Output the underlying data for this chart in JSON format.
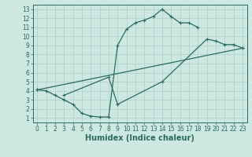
{
  "bg_color": "#cde8e0",
  "line_color": "#2a6b5e",
  "grid_color": "#aacfc7",
  "curve1_x": [
    0,
    1,
    2,
    3,
    4,
    5,
    6,
    7,
    8,
    9,
    10,
    11,
    12,
    13,
    14,
    15,
    16,
    17,
    18
  ],
  "curve1_y": [
    4.1,
    4.0,
    3.5,
    3.0,
    2.5,
    1.5,
    1.2,
    1.1,
    1.1,
    9.0,
    10.8,
    11.5,
    11.8,
    12.2,
    13.0,
    12.2,
    11.5,
    11.5,
    11.0
  ],
  "curve2_x": [
    0,
    23
  ],
  "curve2_y": [
    4.1,
    8.7
  ],
  "curve3_x": [
    3,
    8,
    9,
    14,
    19,
    20,
    21,
    22,
    23
  ],
  "curve3_y": [
    3.5,
    5.5,
    2.5,
    5.0,
    9.7,
    9.5,
    9.1,
    9.1,
    8.7
  ],
  "xlabel": "Humidex (Indice chaleur)",
  "xlim": [
    -0.5,
    23.5
  ],
  "ylim": [
    0.5,
    13.5
  ],
  "xticks": [
    0,
    1,
    2,
    3,
    4,
    5,
    6,
    7,
    8,
    9,
    10,
    11,
    12,
    13,
    14,
    15,
    16,
    17,
    18,
    19,
    20,
    21,
    22,
    23
  ],
  "yticks": [
    1,
    2,
    3,
    4,
    5,
    6,
    7,
    8,
    9,
    10,
    11,
    12,
    13
  ],
  "xlabel_fontsize": 7,
  "tick_fontsize": 5.5,
  "linewidth": 0.9,
  "markersize": 3,
  "markeredgewidth": 0.8
}
